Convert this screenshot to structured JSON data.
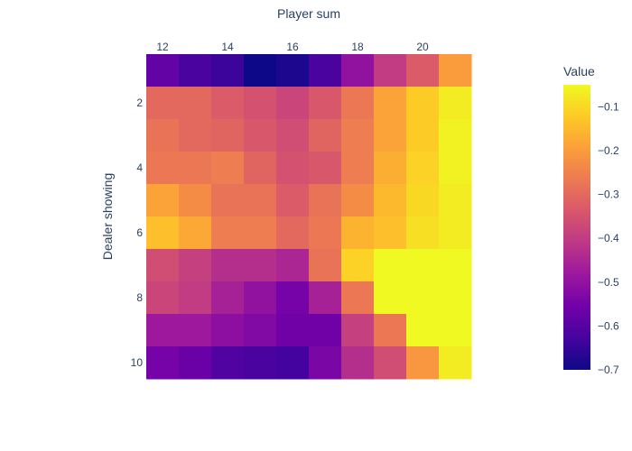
{
  "chart_data": {
    "type": "heatmap",
    "title": "",
    "xlabel": "Player sum",
    "ylabel": "Dealer showing",
    "x": [
      12,
      13,
      14,
      15,
      16,
      17,
      18,
      19,
      20,
      21
    ],
    "y": [
      1,
      2,
      3,
      4,
      5,
      6,
      7,
      8,
      9,
      10
    ],
    "x_tick_labels": [
      "12",
      "14",
      "16",
      "18",
      "20"
    ],
    "y_tick_labels": [
      "2",
      "4",
      "6",
      "8",
      "10"
    ],
    "x_axis_position": "top",
    "y_axis_reversed": true,
    "colorbar": {
      "title": "Value",
      "range": [
        -0.7,
        -0.05
      ],
      "tick_values": [
        -0.7,
        -0.6,
        -0.5,
        -0.4,
        -0.3,
        -0.2,
        -0.1
      ],
      "tick_labels": [
        "−0.7",
        "−0.6",
        "−0.5",
        "−0.4",
        "−0.3",
        "−0.2",
        "−0.1"
      ]
    },
    "colorscale": [
      "#0d0887",
      "#46039f",
      "#7201a8",
      "#9c179e",
      "#bd3786",
      "#d8576b",
      "#ed7953",
      "#fb9f3a",
      "#fdca26",
      "#f0f921"
    ],
    "z": [
      [
        -0.58,
        -0.62,
        -0.64,
        -0.7,
        -0.68,
        -0.62,
        -0.5,
        -0.4,
        -0.33,
        -0.2
      ],
      [
        -0.3,
        -0.3,
        -0.33,
        -0.35,
        -0.38,
        -0.34,
        -0.27,
        -0.19,
        -0.12,
        -0.07
      ],
      [
        -0.28,
        -0.3,
        -0.31,
        -0.34,
        -0.36,
        -0.31,
        -0.26,
        -0.19,
        -0.12,
        -0.06
      ],
      [
        -0.27,
        -0.27,
        -0.26,
        -0.31,
        -0.35,
        -0.34,
        -0.26,
        -0.17,
        -0.11,
        -0.06
      ],
      [
        -0.19,
        -0.23,
        -0.28,
        -0.28,
        -0.33,
        -0.28,
        -0.23,
        -0.15,
        -0.1,
        -0.07
      ],
      [
        -0.14,
        -0.18,
        -0.26,
        -0.26,
        -0.3,
        -0.27,
        -0.16,
        -0.14,
        -0.09,
        -0.07
      ],
      [
        -0.36,
        -0.39,
        -0.43,
        -0.43,
        -0.45,
        -0.28,
        -0.11,
        -0.05,
        -0.05,
        -0.04
      ],
      [
        -0.38,
        -0.4,
        -0.46,
        -0.5,
        -0.55,
        -0.46,
        -0.27,
        -0.04,
        -0.04,
        -0.03
      ],
      [
        -0.48,
        -0.48,
        -0.51,
        -0.53,
        -0.56,
        -0.56,
        -0.39,
        -0.27,
        -0.04,
        -0.03
      ],
      [
        -0.55,
        -0.57,
        -0.61,
        -0.62,
        -0.63,
        -0.54,
        -0.43,
        -0.36,
        -0.21,
        -0.07
      ]
    ]
  }
}
